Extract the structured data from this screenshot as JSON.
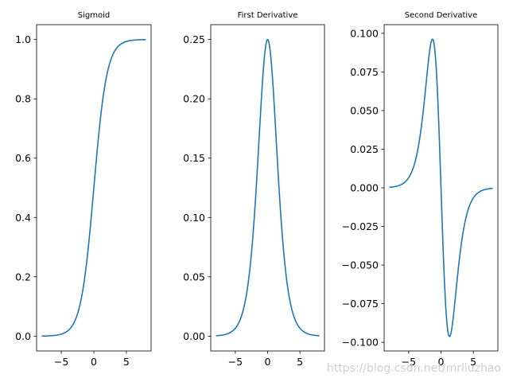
{
  "watermark": "https://blog.csdn.net/mrliuzhao",
  "colors": {
    "line": "#1f77b4",
    "axes": "#000000",
    "background": "#ffffff"
  },
  "chart_data": [
    {
      "type": "line",
      "function": "sigmoid",
      "title": "Sigmoid",
      "xlabel": "",
      "ylabel": "",
      "xlim": [
        -8.8,
        8.8
      ],
      "ylim": [
        -0.05,
        1.05
      ],
      "xticks": [
        -5,
        0,
        5
      ],
      "xtick_labels": [
        "−5",
        "0",
        "5"
      ],
      "yticks": [
        0.0,
        0.2,
        0.4,
        0.6,
        0.8,
        1.0
      ],
      "ytick_labels": [
        "0.0",
        "0.2",
        "0.4",
        "0.6",
        "0.8",
        "1.0"
      ],
      "grid": false,
      "x": [
        -8,
        -7,
        -6,
        -5,
        -4,
        -3,
        -2,
        -1.5,
        -1,
        -0.5,
        0,
        0.5,
        1,
        1.5,
        2,
        3,
        4,
        5,
        6,
        7,
        8
      ],
      "y": [
        0.0003,
        0.0009,
        0.0025,
        0.0067,
        0.018,
        0.0474,
        0.1192,
        0.1824,
        0.2689,
        0.3775,
        0.5,
        0.6225,
        0.7311,
        0.8176,
        0.8808,
        0.9526,
        0.982,
        0.9933,
        0.9975,
        0.9991,
        0.9997
      ]
    },
    {
      "type": "line",
      "function": "sigmoid_first_derivative",
      "title": "First Derivative",
      "xlabel": "",
      "ylabel": "",
      "xlim": [
        -8.8,
        8.8
      ],
      "ylim": [
        -0.0125,
        0.2625
      ],
      "xticks": [
        -5,
        0,
        5
      ],
      "xtick_labels": [
        "−5",
        "0",
        "5"
      ],
      "yticks": [
        0.0,
        0.05,
        0.1,
        0.15,
        0.2,
        0.25
      ],
      "ytick_labels": [
        "0.00",
        "0.05",
        "0.10",
        "0.15",
        "0.20",
        "0.25"
      ],
      "grid": false,
      "x": [
        -8,
        -7,
        -6,
        -5,
        -4,
        -3,
        -2,
        -1.5,
        -1,
        -0.5,
        0,
        0.5,
        1,
        1.5,
        2,
        3,
        4,
        5,
        6,
        7,
        8
      ],
      "y": [
        0.0003,
        0.0009,
        0.0025,
        0.0066,
        0.0177,
        0.0452,
        0.105,
        0.1491,
        0.1966,
        0.235,
        0.25,
        0.235,
        0.1966,
        0.1491,
        0.105,
        0.0452,
        0.0177,
        0.0066,
        0.0025,
        0.0009,
        0.0003
      ]
    },
    {
      "type": "line",
      "function": "sigmoid_second_derivative",
      "title": "Second Derivative",
      "xlabel": "",
      "ylabel": "",
      "xlim": [
        -8.8,
        8.8
      ],
      "ylim": [
        -0.1056,
        0.1056
      ],
      "xticks": [
        -5,
        0,
        5
      ],
      "xtick_labels": [
        "−5",
        "0",
        "5"
      ],
      "yticks": [
        -0.1,
        -0.075,
        -0.05,
        -0.025,
        0.0,
        0.025,
        0.05,
        0.075,
        0.1
      ],
      "ytick_labels": [
        "−0.100",
        "−0.075",
        "−0.050",
        "−0.025",
        "0.000",
        "0.025",
        "0.050",
        "0.075",
        "0.100"
      ],
      "grid": false,
      "x": [
        -8,
        -7,
        -6,
        -5,
        -4,
        -3,
        -2,
        -1.5,
        -1.3,
        -1,
        -0.5,
        0,
        0.5,
        1,
        1.3,
        1.5,
        2,
        3,
        4,
        5,
        6,
        7,
        8
      ],
      "y": [
        0.0003,
        0.0009,
        0.0025,
        0.0066,
        0.0171,
        0.0409,
        0.08,
        0.0947,
        0.0962,
        0.0909,
        0.0576,
        0.0,
        -0.0576,
        -0.0909,
        -0.0962,
        -0.0947,
        -0.08,
        -0.0409,
        -0.0171,
        -0.0066,
        -0.0025,
        -0.0009,
        -0.0003
      ]
    }
  ]
}
